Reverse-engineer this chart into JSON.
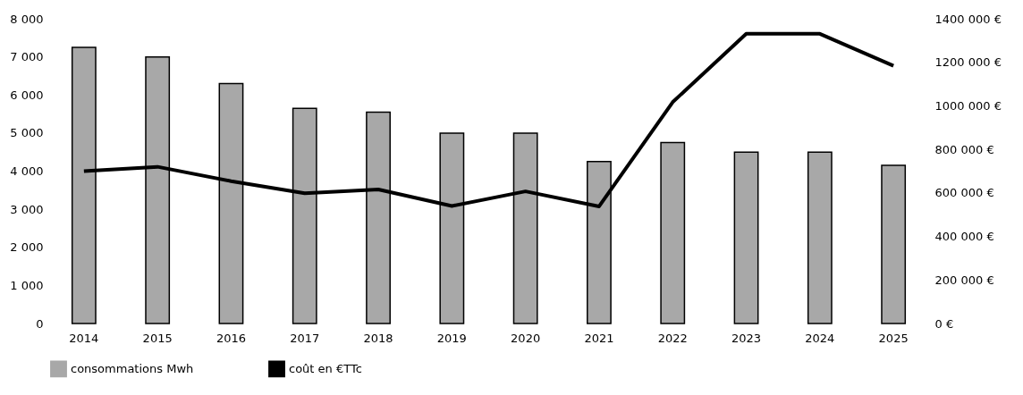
{
  "chart_data": {
    "type": "bar",
    "categories": [
      "2014",
      "2015",
      "2016",
      "2017",
      "2018",
      "2019",
      "2020",
      "2021",
      "2022",
      "2023",
      "2024",
      "2025"
    ],
    "series": [
      {
        "name": "consommations Mwh",
        "color": "#a8a8a8",
        "values": [
          7250,
          7000,
          6300,
          5650,
          5550,
          5000,
          5000,
          4250,
          4750,
          4500,
          4500,
          4150
        ]
      },
      {
        "name": "coût en €TTc",
        "type": "line",
        "axis": "y2",
        "color": "#000000",
        "values": [
          700000,
          720000,
          654000,
          598000,
          616000,
          540000,
          607000,
          538000,
          1017000,
          1331000,
          1331000,
          1184000
        ]
      }
    ],
    "ylim": [
      0,
      8000
    ],
    "yticks": [
      {
        "value": 0,
        "label": "0"
      },
      {
        "value": 1000,
        "label": "1 000"
      },
      {
        "value": 2000,
        "label": "2 000"
      },
      {
        "value": 3000,
        "label": "3 000"
      },
      {
        "value": 4000,
        "label": "4 000"
      },
      {
        "value": 5000,
        "label": "5 000"
      },
      {
        "value": 6000,
        "label": "6 000"
      },
      {
        "value": 7000,
        "label": "7 000"
      },
      {
        "value": 8000,
        "label": "8 000"
      }
    ],
    "y2lim": [
      0,
      1400000
    ],
    "y2ticks": [
      {
        "value": 0,
        "label": "0 €"
      },
      {
        "value": 200000,
        "label": "200 000 €"
      },
      {
        "value": 400000,
        "label": "400 000 €"
      },
      {
        "value": 600000,
        "label": "600 000 €"
      },
      {
        "value": 800000,
        "label": "800 000 €"
      },
      {
        "value": 1000000,
        "label": "1000 000 €"
      },
      {
        "value": 1200000,
        "label": "1200 000 €"
      },
      {
        "value": 1400000,
        "label": "1400 000 €"
      }
    ],
    "grid": false,
    "legend": "bottom",
    "marker": "none",
    "line_style": "solid"
  }
}
